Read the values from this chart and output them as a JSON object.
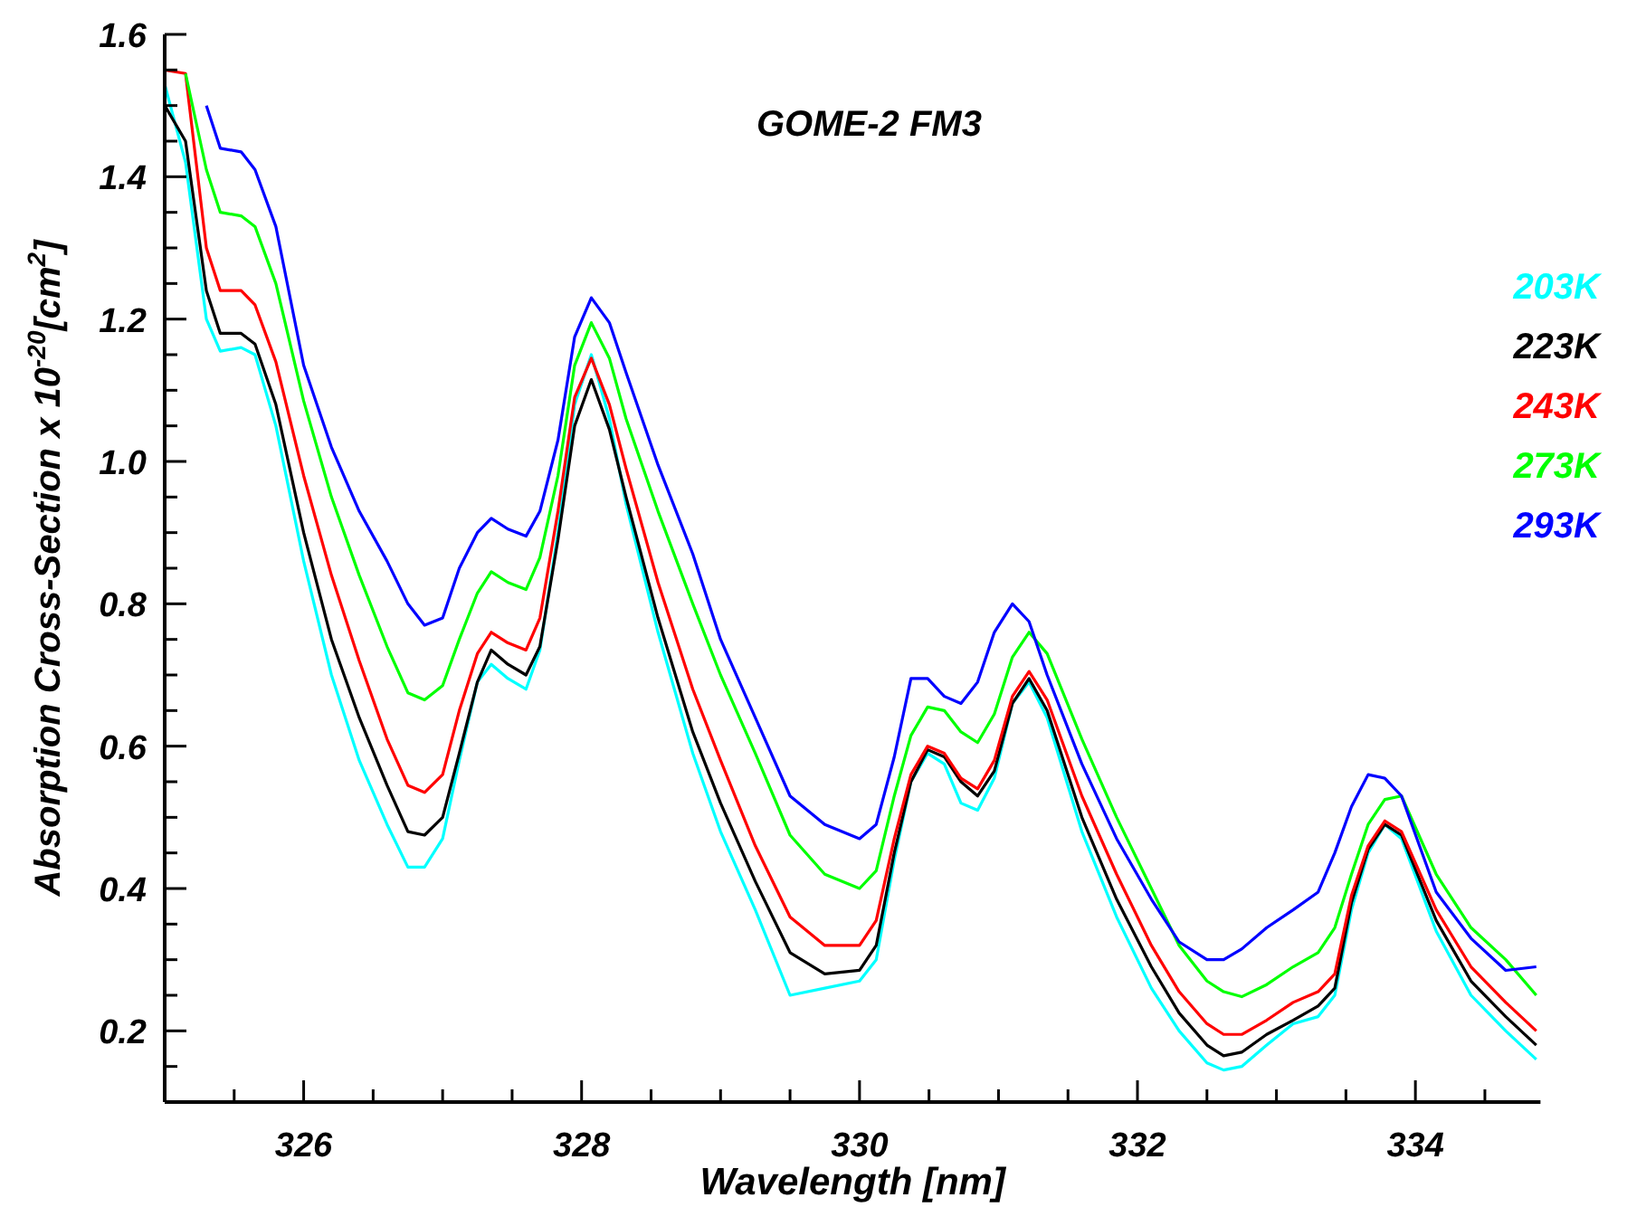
{
  "chart_data": {
    "type": "line",
    "title": "GOME-2  FM3",
    "xlabel": "Wavelength [nm]",
    "ylabel": "Absorption Cross-Section x 10$^{-20}$[cm$^{2}$]",
    "x": [
      325.0,
      325.15,
      325.3,
      325.4,
      325.55,
      325.65,
      325.8,
      326.0,
      326.2,
      326.4,
      326.6,
      326.75,
      326.87,
      327.0,
      327.12,
      327.25,
      327.35,
      327.47,
      327.6,
      327.7,
      327.83,
      327.95,
      328.07,
      328.2,
      328.32,
      328.55,
      328.8,
      329.0,
      329.25,
      329.5,
      329.75,
      330.0,
      330.12,
      330.25,
      330.37,
      330.49,
      330.61,
      330.73,
      330.85,
      330.97,
      331.1,
      331.22,
      331.35,
      331.6,
      331.85,
      332.1,
      332.3,
      332.5,
      332.62,
      332.75,
      332.93,
      333.12,
      333.3,
      333.42,
      333.54,
      333.66,
      333.78,
      333.9,
      334.15,
      334.4,
      334.65,
      334.87
    ],
    "series": [
      {
        "name": "203K",
        "color": "#00ffff",
        "values": [
          1.53,
          1.42,
          1.2,
          1.155,
          1.16,
          1.15,
          1.05,
          0.86,
          0.7,
          0.58,
          0.49,
          0.43,
          0.43,
          0.47,
          0.58,
          0.69,
          0.715,
          0.695,
          0.68,
          0.735,
          0.9,
          1.08,
          1.15,
          1.06,
          0.94,
          0.76,
          0.59,
          0.48,
          0.37,
          0.25,
          0.26,
          0.27,
          0.3,
          0.44,
          0.55,
          0.59,
          0.575,
          0.52,
          0.51,
          0.555,
          0.66,
          0.69,
          0.64,
          0.48,
          0.36,
          0.26,
          0.2,
          0.155,
          0.145,
          0.15,
          0.18,
          0.21,
          0.22,
          0.25,
          0.37,
          0.45,
          0.49,
          0.47,
          0.34,
          0.25,
          0.2,
          0.16
        ]
      },
      {
        "name": "223K",
        "color": "#000000",
        "values": [
          1.5,
          1.45,
          1.24,
          1.18,
          1.18,
          1.165,
          1.08,
          0.9,
          0.75,
          0.64,
          0.545,
          0.48,
          0.475,
          0.5,
          0.59,
          0.69,
          0.735,
          0.715,
          0.7,
          0.74,
          0.89,
          1.05,
          1.115,
          1.045,
          0.95,
          0.78,
          0.62,
          0.52,
          0.41,
          0.31,
          0.28,
          0.285,
          0.32,
          0.45,
          0.55,
          0.595,
          0.585,
          0.55,
          0.53,
          0.565,
          0.66,
          0.695,
          0.65,
          0.5,
          0.385,
          0.29,
          0.225,
          0.18,
          0.165,
          0.17,
          0.195,
          0.215,
          0.235,
          0.26,
          0.38,
          0.455,
          0.49,
          0.475,
          0.355,
          0.27,
          0.22,
          0.18
        ]
      },
      {
        "name": "243K",
        "color": "#ff0000",
        "values": [
          1.55,
          1.545,
          1.3,
          1.24,
          1.24,
          1.22,
          1.14,
          0.98,
          0.84,
          0.72,
          0.61,
          0.545,
          0.535,
          0.56,
          0.65,
          0.73,
          0.76,
          0.745,
          0.735,
          0.78,
          0.93,
          1.09,
          1.145,
          1.08,
          0.99,
          0.83,
          0.68,
          0.58,
          0.46,
          0.36,
          0.32,
          0.32,
          0.355,
          0.47,
          0.56,
          0.6,
          0.59,
          0.555,
          0.54,
          0.58,
          0.67,
          0.705,
          0.665,
          0.53,
          0.42,
          0.32,
          0.255,
          0.21,
          0.195,
          0.195,
          0.215,
          0.24,
          0.255,
          0.28,
          0.39,
          0.46,
          0.495,
          0.48,
          0.37,
          0.29,
          0.24,
          0.2
        ]
      },
      {
        "name": "273K",
        "color": "#00ff00",
        "values": [
          null,
          1.545,
          1.41,
          1.35,
          1.345,
          1.33,
          1.25,
          1.085,
          0.95,
          0.84,
          0.74,
          0.675,
          0.665,
          0.685,
          0.75,
          0.815,
          0.845,
          0.83,
          0.82,
          0.865,
          0.98,
          1.135,
          1.195,
          1.145,
          1.06,
          0.93,
          0.8,
          0.7,
          0.59,
          0.475,
          0.42,
          0.4,
          0.425,
          0.53,
          0.615,
          0.655,
          0.65,
          0.62,
          0.605,
          0.645,
          0.725,
          0.76,
          0.73,
          0.61,
          0.5,
          0.4,
          0.32,
          0.27,
          0.255,
          0.248,
          0.265,
          0.29,
          0.31,
          0.345,
          0.42,
          0.49,
          0.525,
          0.53,
          0.42,
          0.345,
          0.3,
          0.25
        ]
      },
      {
        "name": "293K",
        "color": "#0000ff",
        "values": [
          null,
          null,
          1.5,
          1.44,
          1.435,
          1.41,
          1.33,
          1.135,
          1.02,
          0.93,
          0.86,
          0.8,
          0.77,
          0.78,
          0.85,
          0.9,
          0.92,
          0.905,
          0.895,
          0.93,
          1.03,
          1.175,
          1.23,
          1.195,
          1.125,
          0.995,
          0.87,
          0.75,
          0.64,
          0.53,
          0.49,
          0.47,
          0.49,
          0.585,
          0.695,
          0.695,
          0.67,
          0.66,
          0.69,
          0.76,
          0.8,
          0.775,
          0.7,
          0.575,
          0.47,
          0.385,
          0.325,
          0.3,
          0.3,
          0.315,
          0.345,
          0.37,
          0.395,
          0.45,
          0.515,
          0.56,
          0.555,
          0.53,
          0.395,
          0.33,
          0.285,
          0.29
        ]
      }
    ],
    "xlim": [
      325,
      334.9
    ],
    "xticks": [
      {
        "value": 325.5,
        "label": null
      },
      {
        "value": 326,
        "label": "326"
      },
      {
        "value": 326.5,
        "label": null
      },
      {
        "value": 327,
        "label": null
      },
      {
        "value": 327.5,
        "label": null
      },
      {
        "value": 328,
        "label": "328"
      },
      {
        "value": 328.5,
        "label": null
      },
      {
        "value": 329,
        "label": null
      },
      {
        "value": 329.5,
        "label": null
      },
      {
        "value": 330,
        "label": "330"
      },
      {
        "value": 330.5,
        "label": null
      },
      {
        "value": 331,
        "label": null
      },
      {
        "value": 331.5,
        "label": null
      },
      {
        "value": 332,
        "label": "332"
      },
      {
        "value": 332.5,
        "label": null
      },
      {
        "value": 333,
        "label": null
      },
      {
        "value": 333.5,
        "label": null
      },
      {
        "value": 334,
        "label": "334"
      },
      {
        "value": 334.5,
        "label": null
      }
    ],
    "ylim": [
      0.1,
      1.6
    ],
    "yticks": [
      {
        "value": 0.15,
        "label": null
      },
      {
        "value": 0.2,
        "label": "0.2"
      },
      {
        "value": 0.25,
        "label": null
      },
      {
        "value": 0.3,
        "label": null
      },
      {
        "value": 0.35,
        "label": null
      },
      {
        "value": 0.4,
        "label": "0.4"
      },
      {
        "value": 0.45,
        "label": null
      },
      {
        "value": 0.5,
        "label": null
      },
      {
        "value": 0.55,
        "label": null
      },
      {
        "value": 0.6,
        "label": "0.6"
      },
      {
        "value": 0.65,
        "label": null
      },
      {
        "value": 0.7,
        "label": null
      },
      {
        "value": 0.75,
        "label": null
      },
      {
        "value": 0.8,
        "label": "0.8"
      },
      {
        "value": 0.85,
        "label": null
      },
      {
        "value": 0.9,
        "label": null
      },
      {
        "value": 0.95,
        "label": null
      },
      {
        "value": 1.0,
        "label": "1.0"
      },
      {
        "value": 1.05,
        "label": null
      },
      {
        "value": 1.1,
        "label": null
      },
      {
        "value": 1.15,
        "label": null
      },
      {
        "value": 1.2,
        "label": "1.2"
      },
      {
        "value": 1.25,
        "label": null
      },
      {
        "value": 1.3,
        "label": null
      },
      {
        "value": 1.35,
        "label": null
      },
      {
        "value": 1.4,
        "label": "1.4"
      },
      {
        "value": 1.45,
        "label": null
      },
      {
        "value": 1.5,
        "label": null
      },
      {
        "value": 1.55,
        "label": null
      },
      {
        "value": 1.6,
        "label": "1.6"
      }
    ],
    "grid": false,
    "legend": "right",
    "marker": "none",
    "line_style": "solid"
  }
}
